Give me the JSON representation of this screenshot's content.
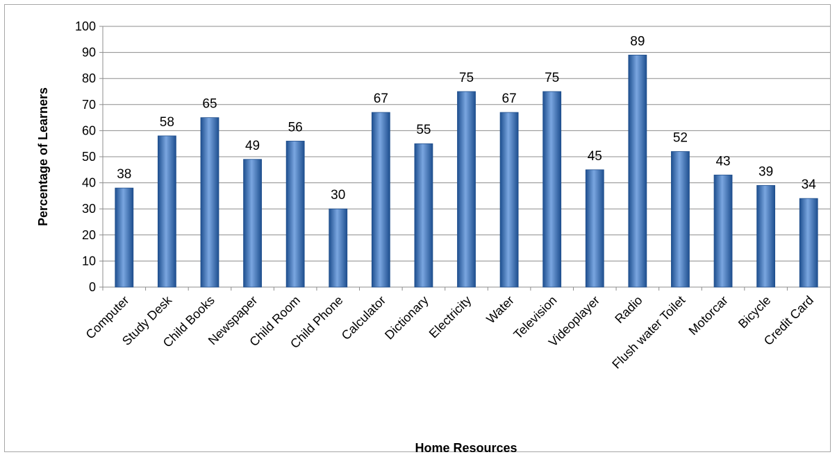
{
  "chart_data": {
    "type": "bar",
    "xlabel": "Home Resources",
    "ylabel": "Percentage of Learners",
    "ylim": [
      0,
      100
    ],
    "ytick_step": 10,
    "grid": true,
    "legend": "none",
    "bar_color": "#3a6fb8",
    "categories": [
      "Computer",
      "Study Desk",
      "Child Books",
      "Newspaper",
      "Child Room",
      "Child Phone",
      "Calculator",
      "Dictionary",
      "Electricity",
      "Water",
      "Television",
      "Videoplayer",
      "Radio",
      "Flush water Toilet",
      "Motorcar",
      "Bicycle",
      "Credit Card"
    ],
    "values": [
      38,
      58,
      65,
      49,
      56,
      30,
      67,
      55,
      75,
      67,
      75,
      45,
      89,
      52,
      43,
      39,
      34
    ],
    "data_labels": [
      "38",
      "58",
      "65",
      "49",
      "56",
      "30",
      "67",
      "55",
      "75",
      "67",
      "75",
      "45",
      "89",
      "52",
      "43",
      "39",
      "34"
    ]
  }
}
